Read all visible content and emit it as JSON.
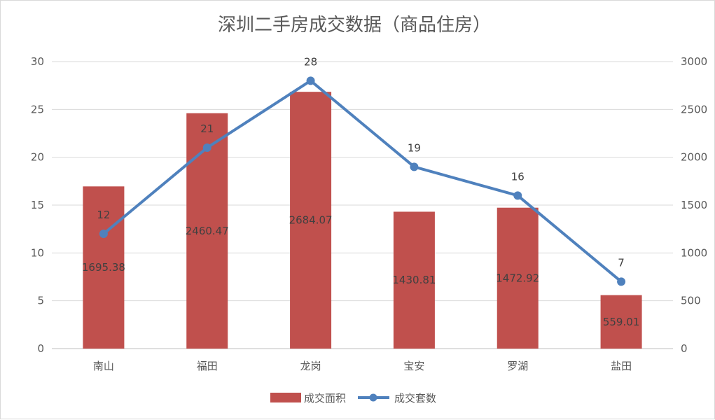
{
  "chart_data": {
    "type": "bar",
    "title": "深圳二手房成交数据（商品住房）",
    "categories": [
      "南山",
      "福田",
      "龙岗",
      "宝安",
      "罗湖",
      "盐田"
    ],
    "series": [
      {
        "name": "成交面积",
        "kind": "bar",
        "axis": "right",
        "color": "#c0504d",
        "values": [
          1695.38,
          2460.47,
          2684.07,
          1430.81,
          1472.92,
          559.01
        ],
        "labels": [
          "1695.38",
          "2460.47",
          "2684.07",
          "1430.81",
          "1472.92",
          "559.01"
        ]
      },
      {
        "name": "成交套数",
        "kind": "line",
        "axis": "left",
        "color": "#4f81bd",
        "values": [
          12,
          21,
          28,
          19,
          16,
          7
        ],
        "labels": [
          "12",
          "21",
          "28",
          "19",
          "16",
          "7"
        ]
      }
    ],
    "y_left": {
      "min": 0,
      "max": 30,
      "ticks": [
        "0",
        "5",
        "10",
        "15",
        "20",
        "25",
        "30"
      ]
    },
    "y_right": {
      "min": 0,
      "max": 3000,
      "ticks": [
        "0",
        "500",
        "1000",
        "1500",
        "2000",
        "2500",
        "3000"
      ]
    },
    "grid": true,
    "legend": "bottom"
  }
}
